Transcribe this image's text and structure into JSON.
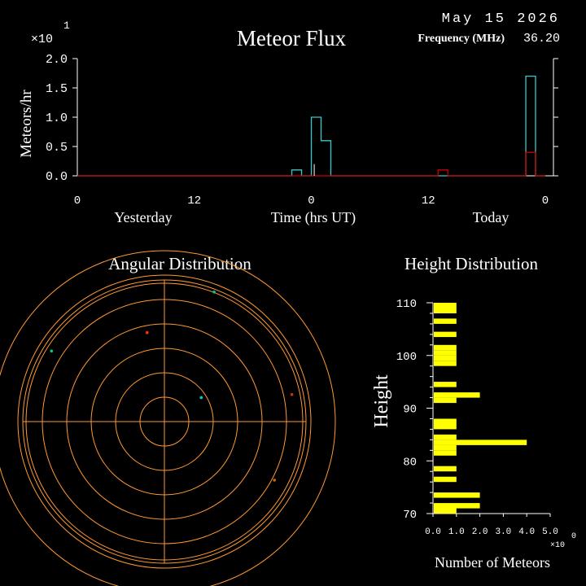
{
  "header": {
    "date": "May 15 2026",
    "frequency_label": "Frequency (MHz)",
    "frequency_value": "36.20"
  },
  "colors": {
    "background": "#000000",
    "axis": "#ffffff",
    "series_today": "#33cccc",
    "series_yesterday": "#cc0000",
    "rings": "#ff9933",
    "bars": "#ffff00"
  },
  "chart_data": [
    {
      "type": "line",
      "title": "Meteor Flux",
      "ylabel": "Meteors/hr",
      "xlabel": "Time (hrs UT)",
      "y_multiplier": "×10",
      "y_multiplier_exp": "1",
      "ylim": [
        0,
        2
      ],
      "yticks": [
        "0.0",
        "0.5",
        "1.0",
        "1.5",
        "2.0"
      ],
      "xlim": [
        0,
        48
      ],
      "xticks": [
        "0",
        "12",
        "0",
        "12",
        "0"
      ],
      "xtick_positions": [
        0,
        12,
        24,
        36,
        48
      ],
      "day_labels": [
        "Yesterday",
        "Today"
      ],
      "grid": false,
      "series": [
        {
          "color": "#33cccc",
          "style": "step",
          "x": [
            0,
            21,
            22,
            23,
            24,
            25,
            26,
            37,
            38,
            45,
            46,
            47,
            48
          ],
          "y": [
            0,
            0,
            0.1,
            0,
            1.0,
            0.6,
            0,
            0,
            0,
            0,
            1.7,
            0,
            0
          ]
        },
        {
          "color": "#cc0000",
          "style": "step",
          "x": [
            0,
            37,
            38,
            45,
            46,
            47,
            48
          ],
          "y": [
            0,
            0.1,
            0,
            0,
            0.4,
            0,
            0
          ]
        }
      ],
      "markers": [
        {
          "x": 24.3,
          "y": 0.2
        }
      ]
    },
    {
      "type": "scatter",
      "title": "Angular Distribution",
      "projection": "polar",
      "rings": 8,
      "points": [
        {
          "az": 21,
          "r": 0.98,
          "color": "#00cc88"
        },
        {
          "az": -58,
          "r": 0.94,
          "color": "#00cc88"
        },
        {
          "az": -11,
          "r": 0.64,
          "color": "#ff3300"
        },
        {
          "az": 57,
          "r": 0.31,
          "color": "#00cccc"
        },
        {
          "az": 78,
          "r": 0.92,
          "color": "#cc3300"
        },
        {
          "az": 118,
          "r": 0.88,
          "color": "#cc6600"
        }
      ]
    },
    {
      "type": "bar",
      "title": "Height Distribution",
      "orientation": "horizontal",
      "ylabel": "Height",
      "xlabel": "Number of Meteors",
      "x_multiplier": "×10",
      "x_multiplier_exp": "0",
      "ylim": [
        70,
        110
      ],
      "yticks": [
        "70",
        "80",
        "90",
        "100",
        "110"
      ],
      "xlim": [
        0,
        5
      ],
      "xticks": [
        "0.0",
        "1.0",
        "2.0",
        "3.0",
        "4.0",
        "5.0"
      ],
      "color": "#ffff00",
      "heights": [
        109.5,
        108.5,
        106.5,
        104,
        101.5,
        100.5,
        99.5,
        98.5,
        94.5,
        92.5,
        91.5,
        87.5,
        86.5,
        84.5,
        83.5,
        82.5,
        81.5,
        78.5,
        76.5,
        73.5,
        71.5,
        70.5
      ],
      "values": [
        1,
        1,
        1,
        1,
        1,
        1,
        1,
        1,
        1,
        2,
        1,
        1,
        1,
        1,
        4,
        1,
        1,
        1,
        1,
        2,
        2,
        1
      ]
    }
  ]
}
